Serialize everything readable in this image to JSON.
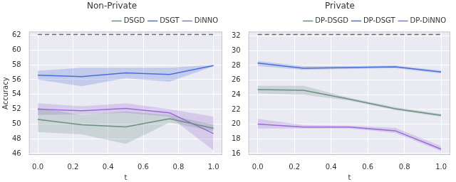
{
  "chart_data": [
    {
      "type": "line",
      "title": "Non-Private",
      "xlabel": "t",
      "ylabel": "Accuracy",
      "x": [
        0,
        0.25,
        0.5,
        0.75,
        1.0
      ],
      "xlim": [
        -0.05,
        1.05
      ],
      "xticks": [
        {
          "value": 0,
          "label": "0.0"
        },
        {
          "value": 0.2,
          "label": "0.2"
        },
        {
          "value": 0.4,
          "label": "0.4"
        },
        {
          "value": 0.6,
          "label": "0.6"
        },
        {
          "value": 0.8,
          "label": "0.8"
        },
        {
          "value": 1.0,
          "label": "1.0"
        }
      ],
      "ylim": [
        45.8,
        62.5
      ],
      "yticks": [
        46,
        48,
        50,
        52,
        54,
        56,
        58,
        60,
        62
      ],
      "grid": true,
      "legend": "upper right",
      "series": [
        {
          "name": "DSGD",
          "color": "#6b8f80",
          "values": [
            50.6,
            49.9,
            49.6,
            50.7,
            49.4
          ],
          "lower": [
            48.9,
            48.6,
            47.3,
            50.2,
            49.0
          ],
          "upper": [
            52.2,
            51.2,
            51.7,
            51.2,
            49.9
          ]
        },
        {
          "name": "DSGT",
          "color": "#4a6fd6",
          "values": [
            56.6,
            56.4,
            56.9,
            56.7,
            57.9
          ],
          "lower": [
            56.0,
            55.1,
            56.2,
            55.7,
            57.8
          ],
          "upper": [
            57.2,
            57.6,
            57.6,
            57.6,
            58.0
          ]
        },
        {
          "name": "DiNNO",
          "color": "#9b6ad6",
          "values": [
            52.0,
            51.8,
            52.1,
            51.5,
            48.7
          ],
          "lower": [
            51.2,
            51.3,
            51.5,
            51.0,
            46.4
          ],
          "upper": [
            52.8,
            52.4,
            52.8,
            52.0,
            51.0
          ]
        },
        {
          "color": "#666666",
          "line_style": "dashed",
          "values": [
            62.1,
            62.1,
            62.1,
            62.1,
            62.1
          ]
        }
      ]
    },
    {
      "type": "line",
      "title": "Private",
      "xlabel": "t",
      "x": [
        0,
        0.25,
        0.5,
        0.75,
        1.0
      ],
      "xlim": [
        -0.05,
        1.05
      ],
      "xticks": [
        {
          "value": 0,
          "label": "0.0"
        },
        {
          "value": 0.2,
          "label": "0.2"
        },
        {
          "value": 0.4,
          "label": "0.4"
        },
        {
          "value": 0.6,
          "label": "0.6"
        },
        {
          "value": 0.8,
          "label": "0.8"
        },
        {
          "value": 1.0,
          "label": "1.0"
        }
      ],
      "ylim": [
        15.8,
        32.6
      ],
      "yticks": [
        16,
        18,
        20,
        22,
        24,
        26,
        28,
        30,
        32
      ],
      "grid": true,
      "legend": "upper right",
      "series": [
        {
          "name": "DP-DSGD",
          "color": "#6b8f80",
          "values": [
            24.7,
            24.6,
            23.4,
            22.1,
            21.2
          ],
          "lower": [
            24.2,
            24.0,
            23.2,
            21.9,
            21.0
          ],
          "upper": [
            25.2,
            25.2,
            23.6,
            22.3,
            21.4
          ]
        },
        {
          "name": "DP-DSGT",
          "color": "#4a6fd6",
          "values": [
            28.3,
            27.6,
            27.7,
            27.8,
            27.1
          ],
          "lower": [
            27.9,
            27.4,
            27.5,
            27.6,
            26.9
          ],
          "upper": [
            28.6,
            27.9,
            27.9,
            28.0,
            27.3
          ]
        },
        {
          "name": "DP-DiNNO",
          "color": "#9b6ad6",
          "values": [
            20.0,
            19.6,
            19.6,
            19.1,
            16.6
          ],
          "lower": [
            19.4,
            19.4,
            19.4,
            18.8,
            16.3
          ],
          "upper": [
            20.7,
            19.9,
            19.8,
            19.5,
            17.0
          ]
        },
        {
          "color": "#666666",
          "line_style": "dashed",
          "values": [
            32.2,
            32.2,
            32.2,
            32.2,
            32.2
          ]
        }
      ]
    }
  ]
}
